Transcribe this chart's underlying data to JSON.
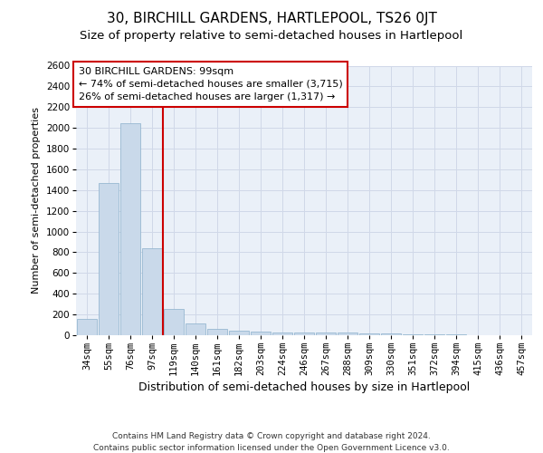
{
  "title": "30, BIRCHILL GARDENS, HARTLEPOOL, TS26 0JT",
  "subtitle": "Size of property relative to semi-detached houses in Hartlepool",
  "xlabel": "Distribution of semi-detached houses by size in Hartlepool",
  "ylabel": "Number of semi-detached properties",
  "categories": [
    "34sqm",
    "55sqm",
    "76sqm",
    "97sqm",
    "119sqm",
    "140sqm",
    "161sqm",
    "182sqm",
    "203sqm",
    "224sqm",
    "246sqm",
    "267sqm",
    "288sqm",
    "309sqm",
    "330sqm",
    "351sqm",
    "372sqm",
    "394sqm",
    "415sqm",
    "436sqm",
    "457sqm"
  ],
  "values": [
    155,
    1470,
    2045,
    840,
    255,
    115,
    65,
    43,
    35,
    30,
    30,
    30,
    27,
    20,
    15,
    12,
    8,
    5,
    3,
    2,
    1
  ],
  "bar_color": "#c9d9ea",
  "bar_edge_color": "#8ab0cc",
  "annotation_line1": "30 BIRCHILL GARDENS: 99sqm",
  "annotation_line2": "← 74% of semi-detached houses are smaller (3,715)",
  "annotation_line3": "26% of semi-detached houses are larger (1,317) →",
  "annotation_box_color": "#ffffff",
  "annotation_box_edge_color": "#cc0000",
  "vline_color": "#cc0000",
  "ylim": [
    0,
    2600
  ],
  "yticks": [
    0,
    200,
    400,
    600,
    800,
    1000,
    1200,
    1400,
    1600,
    1800,
    2000,
    2200,
    2400,
    2600
  ],
  "grid_color": "#d0d8e8",
  "background_color": "#eaf0f8",
  "footer_line1": "Contains HM Land Registry data © Crown copyright and database right 2024.",
  "footer_line2": "Contains public sector information licensed under the Open Government Licence v3.0.",
  "title_fontsize": 11,
  "subtitle_fontsize": 9.5,
  "xlabel_fontsize": 9,
  "ylabel_fontsize": 8,
  "tick_fontsize": 7.5,
  "annotation_fontsize": 8,
  "footer_fontsize": 6.5
}
